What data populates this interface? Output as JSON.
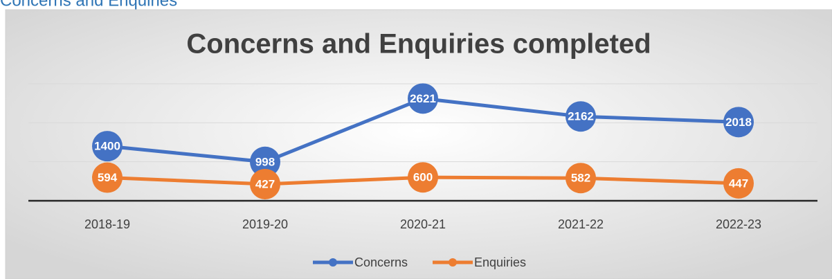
{
  "heading": "Concerns and Enquiries",
  "chart_data": {
    "type": "line",
    "title": "Concerns and Enquiries completed",
    "categories": [
      "2018-19",
      "2019-20",
      "2020-21",
      "2021-22",
      "2022-23"
    ],
    "series": [
      {
        "name": "Concerns",
        "color": "#4472c4",
        "values": [
          1400,
          998,
          2621,
          2162,
          2018
        ]
      },
      {
        "name": "Enquiries",
        "color": "#ed7d31",
        "values": [
          594,
          427,
          600,
          582,
          447
        ]
      }
    ],
    "ylim": [
      0,
      3000
    ],
    "yticks": [
      0,
      1000,
      2000,
      3000
    ],
    "grid": true,
    "legend": "bottom",
    "data_labels": true
  }
}
